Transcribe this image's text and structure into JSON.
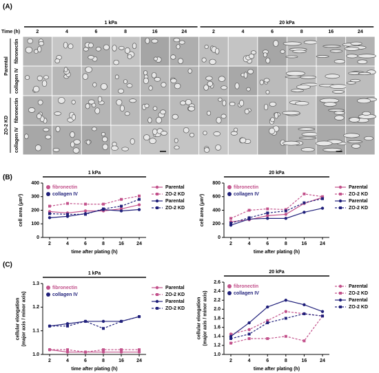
{
  "panel_a": {
    "label": "(A)",
    "stiffness": [
      "1 kPa",
      "20 kPa"
    ],
    "time_label": "Time (h)",
    "times": [
      "2",
      "4",
      "6",
      "8",
      "16",
      "24"
    ],
    "groups": [
      "Parental",
      "ZO-2 KD"
    ],
    "coatings": [
      "fibronectin",
      "collagen IV"
    ]
  },
  "panel_labels": [
    "(B)",
    "(C)"
  ],
  "chart_data": [
    {
      "type": "line",
      "title": "1 kPa",
      "xlabel": "time after plating (h)",
      "ylabel": "cell area (μm²)",
      "categories": [
        "2",
        "4",
        "6",
        "8",
        "16",
        "24"
      ],
      "ylim": [
        0,
        400
      ],
      "yticks": [
        0,
        100,
        200,
        300,
        400
      ],
      "group_labels": [
        "fibronectin",
        "collagen IV"
      ],
      "group_colors": [
        "#c2508a",
        "#1f1f7a"
      ],
      "series": [
        {
          "name": "Parental",
          "color": "#c2508a",
          "dash": false,
          "marker": "circle",
          "values": [
            190,
            180,
            195,
            195,
            210,
            240
          ]
        },
        {
          "name": "ZO-2 KD",
          "color": "#c2508a",
          "dash": true,
          "marker": "square",
          "values": [
            230,
            250,
            245,
            245,
            280,
            305
          ]
        },
        {
          "name": "Parental",
          "color": "#1f1f7a",
          "dash": false,
          "marker": "circle",
          "values": [
            145,
            155,
            175,
            205,
            195,
            205
          ]
        },
        {
          "name": "ZO-2 KD",
          "color": "#1f1f7a",
          "dash": true,
          "marker": "square",
          "values": [
            175,
            170,
            170,
            210,
            230,
            280
          ]
        }
      ]
    },
    {
      "type": "line",
      "title": "20 kPa",
      "xlabel": "time after plating (h)",
      "ylabel": "cell area (μm²)",
      "categories": [
        "2",
        "4",
        "6",
        "8",
        "16",
        "24"
      ],
      "ylim": [
        0,
        800
      ],
      "yticks": [
        0,
        200,
        400,
        600,
        800
      ],
      "group_labels": [
        "fibronectin",
        "collagen IV"
      ],
      "group_colors": [
        "#c2508a",
        "#1f1f7a"
      ],
      "series": [
        {
          "name": "Parental",
          "color": "#c2508a",
          "dash": false,
          "marker": "circle",
          "values": [
            230,
            260,
            320,
            340,
            500,
            590
          ]
        },
        {
          "name": "ZO-2 KD",
          "color": "#c2508a",
          "dash": true,
          "marker": "square",
          "values": [
            280,
            400,
            420,
            410,
            640,
            600
          ]
        },
        {
          "name": "Parental",
          "color": "#1f1f7a",
          "dash": false,
          "marker": "circle",
          "values": [
            180,
            270,
            280,
            280,
            370,
            430
          ]
        },
        {
          "name": "ZO-2 KD",
          "color": "#1f1f7a",
          "dash": true,
          "marker": "square",
          "values": [
            210,
            290,
            360,
            390,
            510,
            570
          ]
        }
      ]
    },
    {
      "type": "line",
      "title": "1 kPa",
      "xlabel": "time after plating (h)",
      "ylabel": [
        "cellular elongation",
        "(major axis / minor axis)"
      ],
      "categories": [
        "2",
        "4",
        "6",
        "8",
        "16",
        "24"
      ],
      "ylim": [
        1.0,
        1.3
      ],
      "yticks": [
        {
          "value": 1.0,
          "label": "1.0"
        },
        {
          "value": 1.1,
          "label": "1.1"
        },
        {
          "value": 1.2,
          "label": "1.2"
        },
        {
          "value": 1.3,
          "label": "1.3"
        }
      ],
      "group_labels": [
        "fibronectin",
        "collagen IV"
      ],
      "group_colors": [
        "#c2508a",
        "#1f1f7a"
      ],
      "series": [
        {
          "name": "Parental",
          "color": "#c2508a",
          "dash": false,
          "marker": "circle",
          "values": [
            1.02,
            1.01,
            1.01,
            1.01,
            1.01,
            1.01
          ]
        },
        {
          "name": "ZO-2 KD",
          "color": "#c2508a",
          "dash": true,
          "marker": "square",
          "values": [
            1.02,
            1.02,
            1.01,
            1.02,
            1.02,
            1.02
          ]
        },
        {
          "name": "Parental",
          "color": "#1f1f7a",
          "dash": false,
          "marker": "circle",
          "values": [
            1.12,
            1.13,
            1.14,
            1.14,
            1.14,
            1.16
          ]
        },
        {
          "name": "ZO-2 KD",
          "color": "#1f1f7a",
          "dash": true,
          "marker": "square",
          "values": [
            1.12,
            1.12,
            1.14,
            1.11,
            1.14,
            1.16
          ]
        }
      ]
    },
    {
      "type": "line",
      "title": "20 kPa",
      "xlabel": "time after plating (h)",
      "ylabel": [
        "cellular elongation",
        "(major axis / minor axis)"
      ],
      "categories": [
        "2",
        "4",
        "6",
        "8",
        "16",
        "24"
      ],
      "ylim": [
        1.0,
        2.6
      ],
      "yticks": [
        {
          "value": 1.0,
          "label": "1.0"
        },
        {
          "value": 1.2,
          "label": "1.2"
        },
        {
          "value": 1.4,
          "label": "1.4"
        },
        {
          "value": 1.6,
          "label": "1.6"
        },
        {
          "value": 1.8,
          "label": "1.8"
        },
        {
          "value": 2.0,
          "label": "2.0"
        },
        {
          "value": 2.2,
          "label": "2.2"
        },
        {
          "value": 2.4,
          "label": "2.4"
        },
        {
          "value": 2.6,
          "label": "2.6"
        }
      ],
      "group_labels": [
        "fibronectin",
        "collagen IV"
      ],
      "group_colors": [
        "#c2508a",
        "#1f1f7a"
      ],
      "series": [
        {
          "name": "Parental",
          "color": "#c2508a",
          "dash": true,
          "marker": "circle",
          "values": [
            1.45,
            1.55,
            1.75,
            1.95,
            1.9,
            1.85
          ]
        },
        {
          "name": "ZO-2 KD",
          "color": "#c2508a",
          "dash": true,
          "marker": "square",
          "values": [
            1.25,
            1.35,
            1.35,
            1.4,
            1.3,
            1.85
          ]
        },
        {
          "name": "Parental",
          "color": "#1f1f7a",
          "dash": false,
          "marker": "circle",
          "values": [
            1.4,
            1.7,
            2.05,
            2.2,
            2.1,
            1.95
          ]
        },
        {
          "name": "ZO-2 KD",
          "color": "#1f1f7a",
          "dash": true,
          "marker": "square",
          "values": [
            1.35,
            1.45,
            1.7,
            1.8,
            1.9,
            1.85
          ]
        }
      ]
    }
  ]
}
